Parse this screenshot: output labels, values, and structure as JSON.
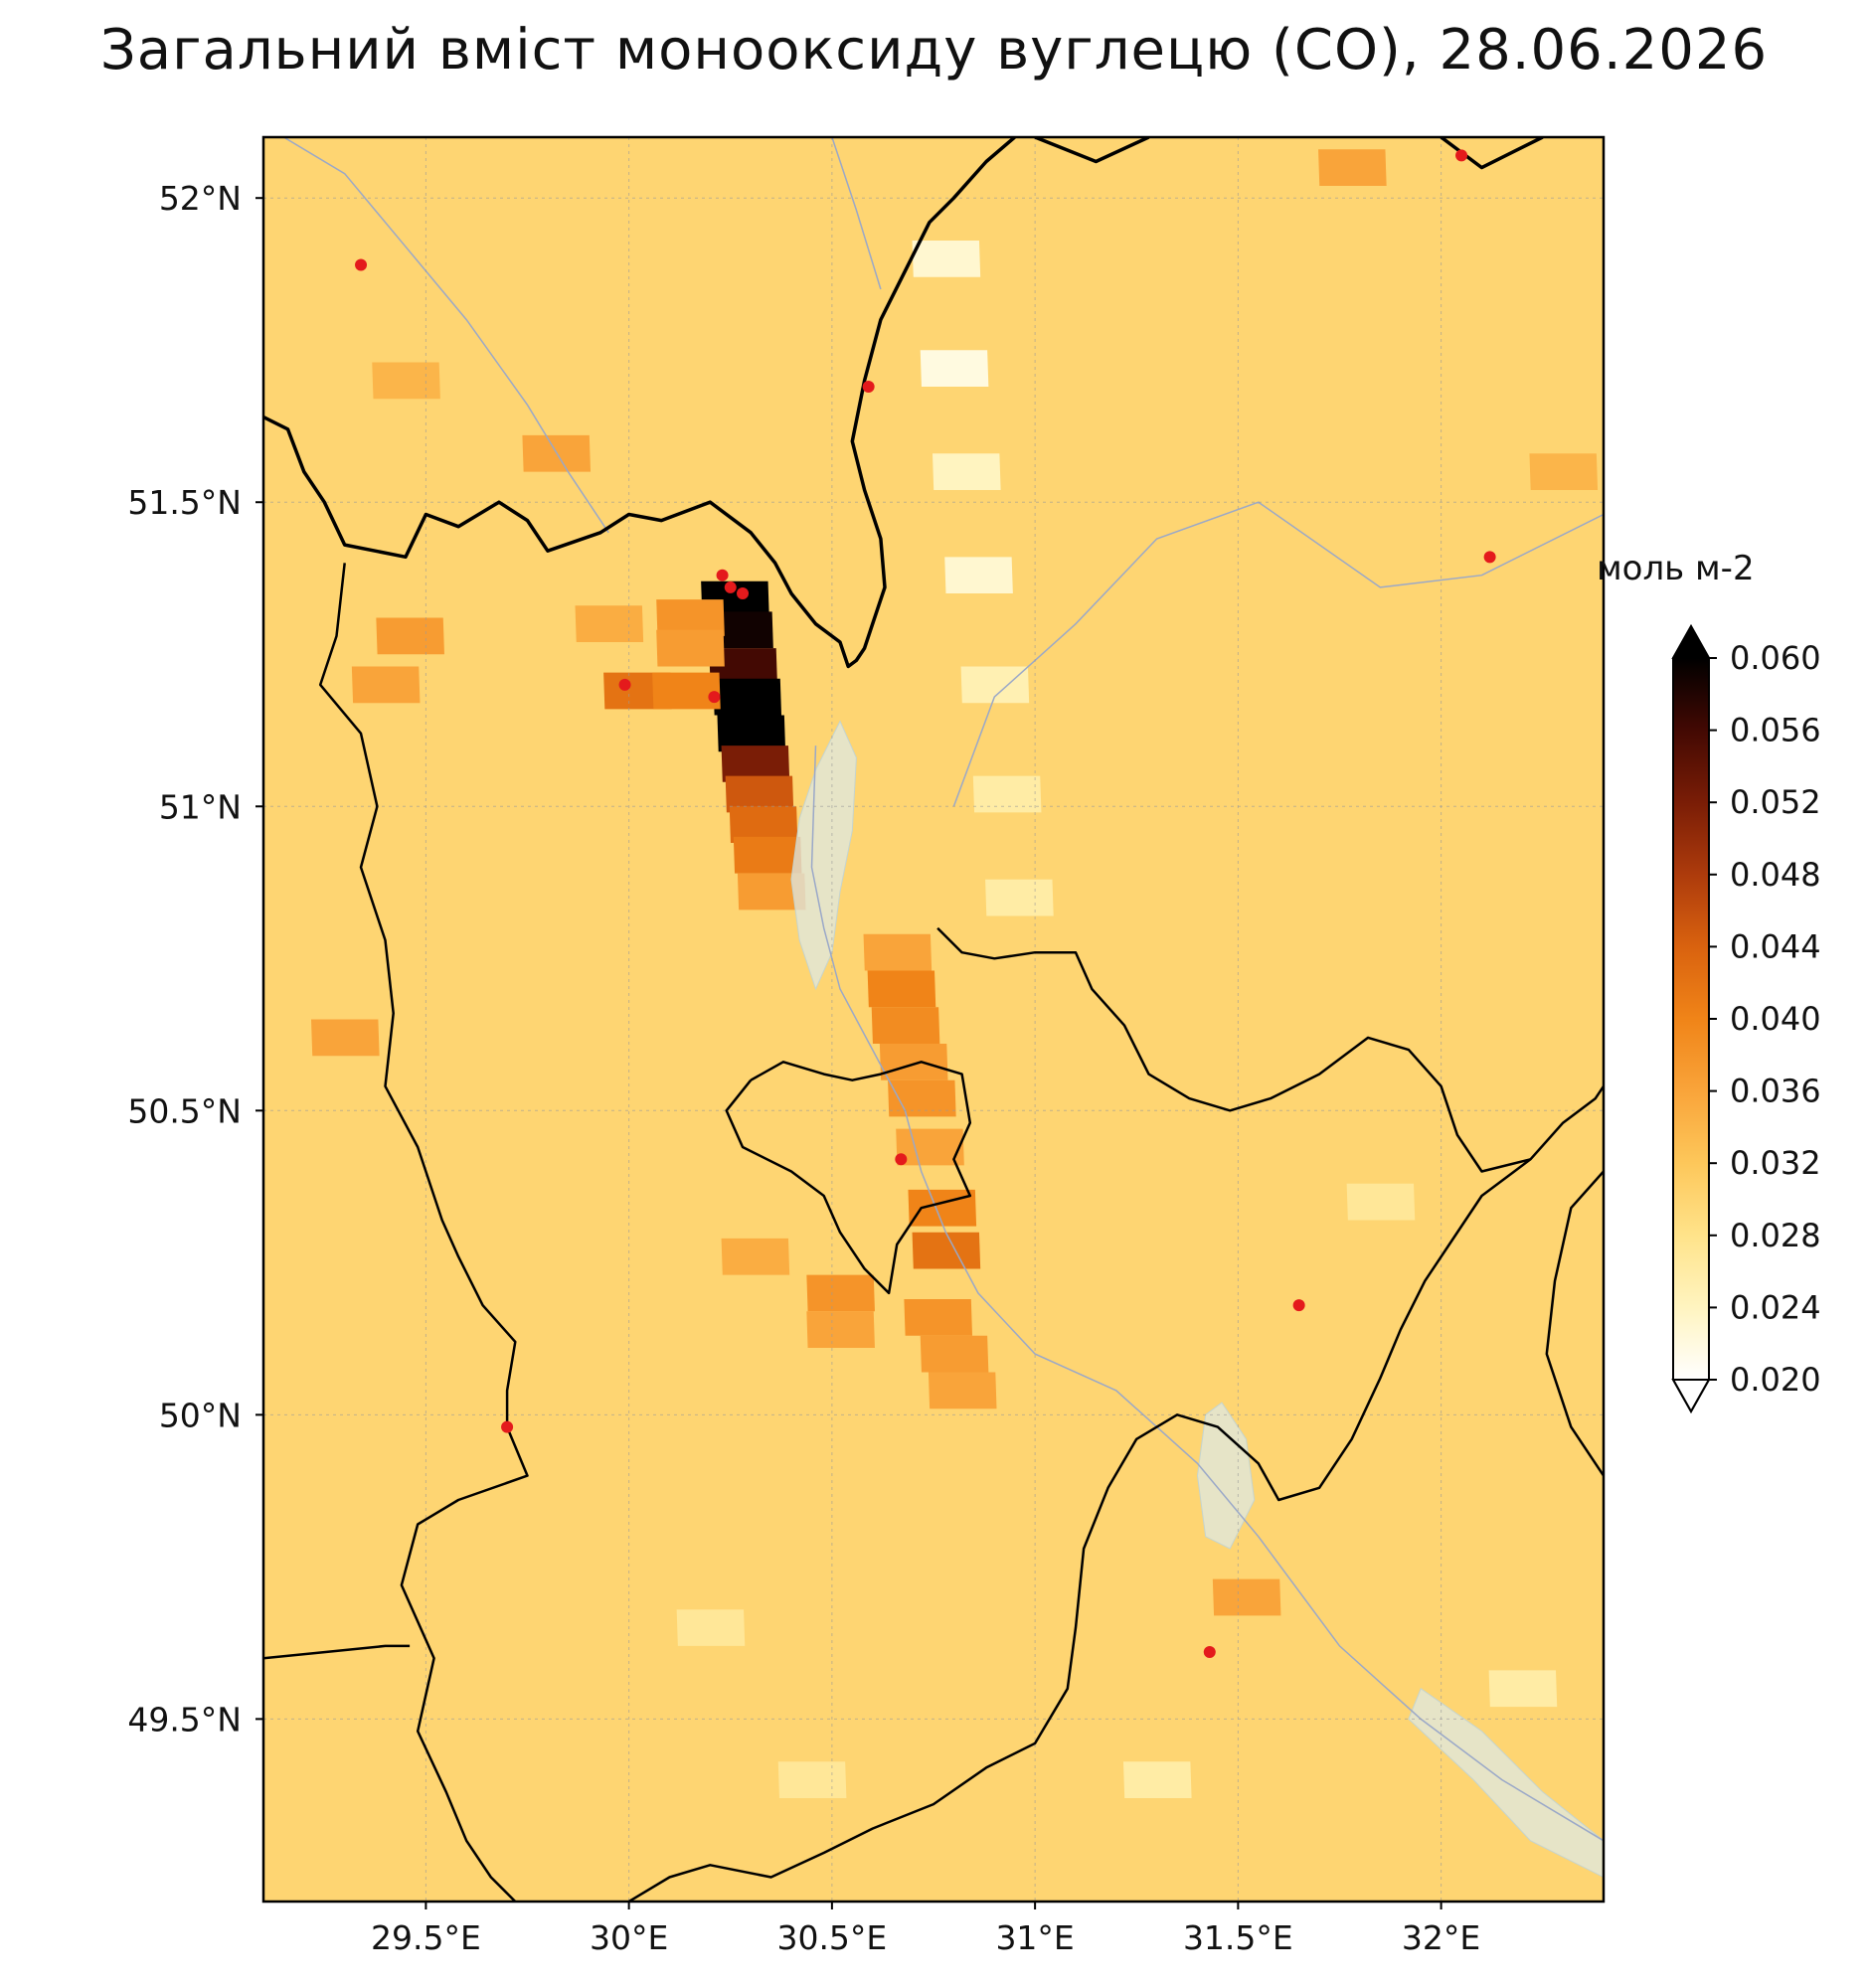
{
  "title": "Загальний вміст монооксиду вуглецю (CO), 28.06.2026",
  "colorbar": {
    "unit": "моль м-2",
    "ticks": [
      "0.060",
      "0.056",
      "0.052",
      "0.048",
      "0.044",
      "0.040",
      "0.036",
      "0.032",
      "0.028",
      "0.024",
      "0.020"
    ],
    "range": [
      0.02,
      0.06
    ],
    "colormap": [
      "#ffffff",
      "#fff4c0",
      "#ffe38a",
      "#fdc75a",
      "#f9a43a",
      "#f08418",
      "#d9620f",
      "#ad3b0c",
      "#7a1d06",
      "#430903",
      "#000000"
    ]
  },
  "axes": {
    "lat_ticks": [
      "52°N",
      "51.5°N",
      "51°N",
      "50.5°N",
      "50°N",
      "49.5°N"
    ],
    "lon_ticks": [
      "29.5°E",
      "30°E",
      "30.5°E",
      "31°E",
      "31.5°E",
      "32°E"
    ],
    "lon_range": [
      29.1,
      32.4
    ],
    "lat_range": [
      49.2,
      52.1
    ],
    "gridlines": true
  },
  "map": {
    "background_color": "#fde68a",
    "border_color": "#000000",
    "river_color": "#9aa8c8",
    "water_color": "#dde8e4",
    "fire_point_color": "#e41a1c"
  },
  "co_field": {
    "background_value": 0.03,
    "plume_cells": [
      {
        "lon": 30.26,
        "lat": 51.34,
        "value": 0.061
      },
      {
        "lon": 30.27,
        "lat": 51.29,
        "value": 0.059
      },
      {
        "lon": 30.28,
        "lat": 51.23,
        "value": 0.056
      },
      {
        "lon": 30.29,
        "lat": 51.18,
        "value": 0.06
      },
      {
        "lon": 30.3,
        "lat": 51.12,
        "value": 0.061
      },
      {
        "lon": 30.31,
        "lat": 51.07,
        "value": 0.052
      },
      {
        "lon": 30.32,
        "lat": 51.02,
        "value": 0.045
      },
      {
        "lon": 30.33,
        "lat": 50.97,
        "value": 0.043
      },
      {
        "lon": 30.34,
        "lat": 50.92,
        "value": 0.041
      },
      {
        "lon": 30.35,
        "lat": 50.86,
        "value": 0.037
      },
      {
        "lon": 30.02,
        "lat": 51.19,
        "value": 0.042
      },
      {
        "lon": 30.14,
        "lat": 51.19,
        "value": 0.04
      },
      {
        "lon": 30.66,
        "lat": 50.76,
        "value": 0.036
      },
      {
        "lon": 30.67,
        "lat": 50.7,
        "value": 0.04
      },
      {
        "lon": 30.68,
        "lat": 50.64,
        "value": 0.039
      },
      {
        "lon": 30.7,
        "lat": 50.58,
        "value": 0.037
      },
      {
        "lon": 30.72,
        "lat": 50.52,
        "value": 0.038
      },
      {
        "lon": 30.74,
        "lat": 50.44,
        "value": 0.036
      },
      {
        "lon": 30.77,
        "lat": 50.34,
        "value": 0.04
      },
      {
        "lon": 30.78,
        "lat": 50.27,
        "value": 0.042
      },
      {
        "lon": 30.52,
        "lat": 50.2,
        "value": 0.038
      },
      {
        "lon": 30.52,
        "lat": 50.14,
        "value": 0.036
      },
      {
        "lon": 30.76,
        "lat": 50.16,
        "value": 0.038
      },
      {
        "lon": 30.8,
        "lat": 50.1,
        "value": 0.037
      },
      {
        "lon": 30.82,
        "lat": 50.04,
        "value": 0.036
      },
      {
        "lon": 30.31,
        "lat": 50.26,
        "value": 0.035
      },
      {
        "lon": 30.15,
        "lat": 51.31,
        "value": 0.038
      },
      {
        "lon": 30.15,
        "lat": 51.26,
        "value": 0.037
      },
      {
        "lon": 29.95,
        "lat": 51.3,
        "value": 0.035
      },
      {
        "lon": 29.82,
        "lat": 51.58,
        "value": 0.036
      },
      {
        "lon": 29.46,
        "lat": 51.28,
        "value": 0.037
      },
      {
        "lon": 29.4,
        "lat": 51.2,
        "value": 0.036
      },
      {
        "lon": 29.3,
        "lat": 50.62,
        "value": 0.036
      },
      {
        "lon": 31.52,
        "lat": 49.7,
        "value": 0.036
      },
      {
        "lon": 31.78,
        "lat": 52.05,
        "value": 0.036
      },
      {
        "lon": 32.3,
        "lat": 51.55,
        "value": 0.034
      },
      {
        "lon": 29.45,
        "lat": 51.7,
        "value": 0.034
      }
    ],
    "low_cells": [
      {
        "lon": 30.78,
        "lat": 51.9,
        "value": 0.023
      },
      {
        "lon": 30.8,
        "lat": 51.72,
        "value": 0.022
      },
      {
        "lon": 30.83,
        "lat": 51.55,
        "value": 0.024
      },
      {
        "lon": 30.86,
        "lat": 51.38,
        "value": 0.023
      },
      {
        "lon": 30.9,
        "lat": 51.2,
        "value": 0.025
      },
      {
        "lon": 30.93,
        "lat": 51.02,
        "value": 0.026
      },
      {
        "lon": 30.96,
        "lat": 50.85,
        "value": 0.026
      },
      {
        "lon": 31.3,
        "lat": 49.4,
        "value": 0.026
      },
      {
        "lon": 30.2,
        "lat": 49.65,
        "value": 0.027
      },
      {
        "lon": 30.45,
        "lat": 49.4,
        "value": 0.027
      },
      {
        "lon": 32.2,
        "lat": 49.55,
        "value": 0.026
      },
      {
        "lon": 31.85,
        "lat": 50.35,
        "value": 0.027
      }
    ]
  },
  "fire_points": [
    {
      "lon": 29.34,
      "lat": 51.89
    },
    {
      "lon": 30.59,
      "lat": 51.69
    },
    {
      "lon": 30.23,
      "lat": 51.38
    },
    {
      "lon": 30.25,
      "lat": 51.36
    },
    {
      "lon": 30.28,
      "lat": 51.35
    },
    {
      "lon": 29.99,
      "lat": 51.2
    },
    {
      "lon": 30.21,
      "lat": 51.18
    },
    {
      "lon": 30.67,
      "lat": 50.42
    },
    {
      "lon": 29.7,
      "lat": 49.98
    },
    {
      "lon": 31.65,
      "lat": 50.18
    },
    {
      "lon": 31.43,
      "lat": 49.61
    },
    {
      "lon": 32.05,
      "lat": 52.07
    },
    {
      "lon": 32.12,
      "lat": 51.41
    }
  ],
  "borders": [
    [
      [
        29.1,
        51.64
      ],
      [
        29.16,
        51.62
      ],
      [
        29.2,
        51.55
      ],
      [
        29.25,
        51.5
      ],
      [
        29.3,
        51.43
      ],
      [
        29.45,
        51.41
      ],
      [
        29.5,
        51.48
      ],
      [
        29.58,
        51.46
      ],
      [
        29.68,
        51.5
      ],
      [
        29.75,
        51.47
      ],
      [
        29.8,
        51.42
      ],
      [
        29.93,
        51.45
      ],
      [
        30.0,
        51.48
      ],
      [
        30.08,
        51.47
      ],
      [
        30.2,
        51.5
      ],
      [
        30.3,
        51.45
      ],
      [
        30.36,
        51.4
      ],
      [
        30.4,
        51.35
      ],
      [
        30.46,
        51.3
      ],
      [
        30.52,
        51.27
      ],
      [
        30.54,
        51.23
      ],
      [
        30.56,
        51.24
      ],
      [
        30.58,
        51.26
      ],
      [
        30.6,
        51.3
      ],
      [
        30.63,
        51.36
      ],
      [
        30.62,
        51.44
      ],
      [
        30.58,
        51.52
      ],
      [
        30.55,
        51.6
      ],
      [
        30.58,
        51.7
      ],
      [
        30.62,
        51.8
      ],
      [
        30.68,
        51.88
      ],
      [
        30.74,
        51.96
      ],
      [
        30.8,
        52.0
      ],
      [
        30.88,
        52.06
      ],
      [
        30.95,
        52.1
      ]
    ],
    [
      [
        31.0,
        52.1
      ],
      [
        31.15,
        52.06
      ],
      [
        31.28,
        52.1
      ]
    ],
    [
      [
        32.0,
        52.1
      ],
      [
        32.1,
        52.05
      ],
      [
        32.25,
        52.1
      ]
    ],
    [
      [
        29.3,
        51.4
      ],
      [
        29.28,
        51.28
      ],
      [
        29.24,
        51.2
      ],
      [
        29.34,
        51.12
      ],
      [
        29.38,
        51.0
      ],
      [
        29.34,
        50.9
      ],
      [
        29.4,
        50.78
      ],
      [
        29.42,
        50.66
      ],
      [
        29.4,
        50.54
      ],
      [
        29.48,
        50.44
      ],
      [
        29.54,
        50.32
      ],
      [
        29.58,
        50.26
      ],
      [
        29.64,
        50.18
      ],
      [
        29.72,
        50.12
      ],
      [
        29.7,
        50.04
      ],
      [
        29.7,
        49.98
      ],
      [
        29.75,
        49.9
      ],
      [
        29.58,
        49.86
      ],
      [
        29.48,
        49.82
      ],
      [
        29.44,
        49.72
      ],
      [
        29.52,
        49.6
      ],
      [
        29.48,
        49.48
      ],
      [
        29.55,
        49.38
      ],
      [
        29.6,
        49.3
      ],
      [
        29.66,
        49.24
      ],
      [
        29.72,
        49.2
      ]
    ],
    [
      [
        29.1,
        49.6
      ],
      [
        29.25,
        49.61
      ],
      [
        29.4,
        49.62
      ],
      [
        29.46,
        49.62
      ]
    ],
    [
      [
        30.0,
        49.2
      ],
      [
        30.1,
        49.24
      ],
      [
        30.2,
        49.26
      ],
      [
        30.35,
        49.24
      ],
      [
        30.48,
        49.28
      ],
      [
        30.6,
        49.32
      ],
      [
        30.75,
        49.36
      ],
      [
        30.88,
        49.42
      ],
      [
        31.0,
        49.46
      ],
      [
        31.08,
        49.55
      ],
      [
        31.1,
        49.65
      ],
      [
        31.12,
        49.78
      ],
      [
        31.18,
        49.88
      ],
      [
        31.25,
        49.96
      ],
      [
        31.35,
        50.0
      ],
      [
        31.45,
        49.98
      ],
      [
        31.55,
        49.92
      ],
      [
        31.6,
        49.86
      ],
      [
        31.7,
        49.88
      ],
      [
        31.78,
        49.96
      ],
      [
        31.85,
        50.06
      ],
      [
        31.9,
        50.14
      ],
      [
        31.96,
        50.22
      ],
      [
        32.02,
        50.28
      ],
      [
        32.1,
        50.36
      ],
      [
        32.22,
        50.42
      ],
      [
        32.3,
        50.48
      ],
      [
        32.38,
        50.52
      ],
      [
        32.4,
        50.54
      ]
    ],
    [
      [
        30.76,
        50.8
      ],
      [
        30.82,
        50.76
      ],
      [
        30.9,
        50.75
      ],
      [
        31.0,
        50.76
      ],
      [
        31.1,
        50.76
      ],
      [
        31.14,
        50.7
      ],
      [
        31.22,
        50.64
      ],
      [
        31.28,
        50.56
      ],
      [
        31.38,
        50.52
      ],
      [
        31.48,
        50.5
      ],
      [
        31.58,
        50.52
      ],
      [
        31.7,
        50.56
      ],
      [
        31.82,
        50.62
      ],
      [
        31.92,
        50.6
      ],
      [
        32.0,
        50.54
      ],
      [
        32.04,
        50.46
      ],
      [
        32.1,
        50.4
      ],
      [
        32.22,
        50.42
      ]
    ],
    [
      [
        30.3,
        50.55
      ],
      [
        30.38,
        50.58
      ],
      [
        30.48,
        50.56
      ],
      [
        30.55,
        50.55
      ],
      [
        30.62,
        50.56
      ],
      [
        30.72,
        50.58
      ],
      [
        30.82,
        50.56
      ],
      [
        30.84,
        50.48
      ],
      [
        30.8,
        50.42
      ],
      [
        30.84,
        50.36
      ],
      [
        30.72,
        50.34
      ],
      [
        30.66,
        50.28
      ],
      [
        30.64,
        50.2
      ],
      [
        30.58,
        50.24
      ],
      [
        30.52,
        50.3
      ],
      [
        30.48,
        50.36
      ],
      [
        30.4,
        50.4
      ],
      [
        30.28,
        50.44
      ],
      [
        30.24,
        50.5
      ],
      [
        30.3,
        50.55
      ]
    ],
    [
      [
        32.4,
        50.4
      ],
      [
        32.32,
        50.34
      ],
      [
        32.28,
        50.22
      ],
      [
        32.26,
        50.1
      ],
      [
        32.32,
        49.98
      ],
      [
        32.4,
        49.9
      ]
    ]
  ],
  "rivers": [
    [
      [
        29.15,
        52.1
      ],
      [
        29.3,
        52.04
      ],
      [
        29.45,
        51.92
      ],
      [
        29.6,
        51.8
      ],
      [
        29.75,
        51.66
      ],
      [
        29.85,
        51.55
      ],
      [
        29.95,
        51.45
      ]
    ],
    [
      [
        30.5,
        52.1
      ],
      [
        30.56,
        51.98
      ],
      [
        30.62,
        51.85
      ]
    ],
    [
      [
        30.46,
        51.1
      ],
      [
        30.45,
        50.9
      ],
      [
        30.48,
        50.8
      ],
      [
        30.52,
        50.7
      ],
      [
        30.6,
        50.6
      ],
      [
        30.68,
        50.5
      ],
      [
        30.72,
        50.4
      ],
      [
        30.78,
        50.3
      ],
      [
        30.86,
        50.2
      ],
      [
        31.0,
        50.1
      ],
      [
        31.2,
        50.04
      ],
      [
        31.4,
        49.92
      ],
      [
        31.55,
        49.8
      ],
      [
        31.75,
        49.62
      ],
      [
        31.95,
        49.5
      ],
      [
        32.15,
        49.4
      ],
      [
        32.4,
        49.3
      ]
    ],
    [
      [
        30.8,
        51.0
      ],
      [
        30.9,
        51.18
      ],
      [
        31.1,
        51.3
      ],
      [
        31.3,
        51.44
      ],
      [
        31.55,
        51.5
      ],
      [
        31.85,
        51.36
      ],
      [
        32.1,
        51.38
      ],
      [
        32.4,
        51.48
      ]
    ]
  ],
  "water_bodies": [
    [
      [
        30.52,
        51.14
      ],
      [
        30.56,
        51.08
      ],
      [
        30.55,
        50.96
      ],
      [
        30.52,
        50.86
      ],
      [
        30.5,
        50.76
      ],
      [
        30.46,
        50.7
      ],
      [
        30.42,
        50.78
      ],
      [
        30.4,
        50.88
      ],
      [
        30.42,
        50.98
      ],
      [
        30.46,
        51.06
      ]
    ],
    [
      [
        31.46,
        50.02
      ],
      [
        31.52,
        49.96
      ],
      [
        31.54,
        49.86
      ],
      [
        31.48,
        49.78
      ],
      [
        31.42,
        49.8
      ],
      [
        31.4,
        49.9
      ],
      [
        31.42,
        50.0
      ]
    ],
    [
      [
        31.95,
        49.55
      ],
      [
        32.1,
        49.48
      ],
      [
        32.25,
        49.38
      ],
      [
        32.4,
        49.3
      ],
      [
        32.4,
        49.24
      ],
      [
        32.22,
        49.3
      ],
      [
        32.08,
        49.4
      ],
      [
        31.92,
        49.5
      ]
    ]
  ]
}
